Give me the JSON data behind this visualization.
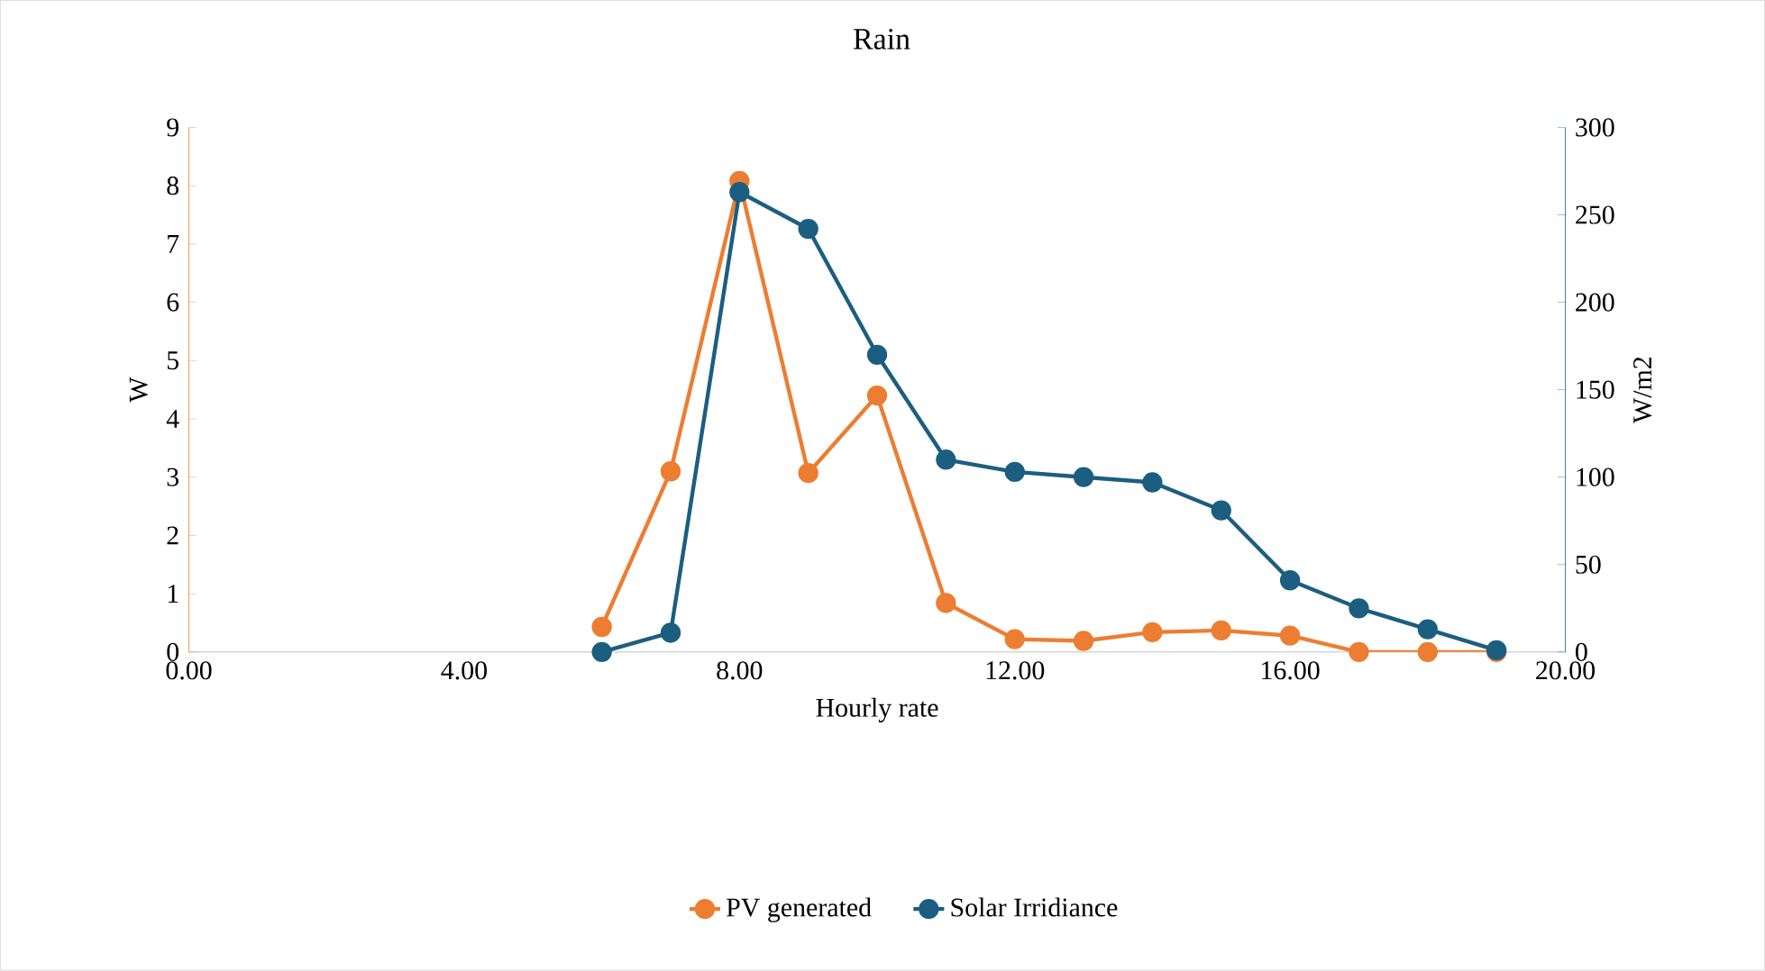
{
  "chart_data": {
    "type": "line",
    "title": "Rain",
    "xlabel": "Hourly rate",
    "ylabel": "W",
    "y2label": "W/m2",
    "x": [
      6,
      7,
      8,
      9,
      10,
      11,
      12,
      13,
      14,
      15,
      16,
      17,
      18,
      19
    ],
    "series": [
      {
        "name": "PV generated",
        "color": "#ed7d31",
        "values": [
          0.43,
          3.1,
          8.08,
          3.07,
          4.4,
          0.84,
          0.22,
          0.19,
          0.34,
          0.37,
          0.28,
          0,
          0,
          0
        ]
      },
      {
        "name": "Solar Irridiance",
        "color": "#1b5e80",
        "axis": "y2",
        "values": [
          0,
          11,
          263,
          242,
          170,
          110,
          103,
          100,
          97,
          81,
          41,
          25,
          13,
          1
        ]
      }
    ],
    "xlim": [
      0,
      20
    ],
    "xticks": [
      {
        "value": 0,
        "label": "0.00"
      },
      {
        "value": 4,
        "label": "4.00"
      },
      {
        "value": 8,
        "label": "8.00"
      },
      {
        "value": 12,
        "label": "12.00"
      },
      {
        "value": 16,
        "label": "16.00"
      },
      {
        "value": 20,
        "label": "20.00"
      }
    ],
    "ylim": [
      0,
      9
    ],
    "yticks": [
      0,
      1,
      2,
      3,
      4,
      5,
      6,
      7,
      8,
      9
    ],
    "y2lim": [
      0,
      300
    ],
    "y2ticks": [
      0,
      50,
      100,
      150,
      200,
      250,
      300
    ],
    "marker": "circle",
    "line_style": "solid",
    "legend": "bottom"
  }
}
